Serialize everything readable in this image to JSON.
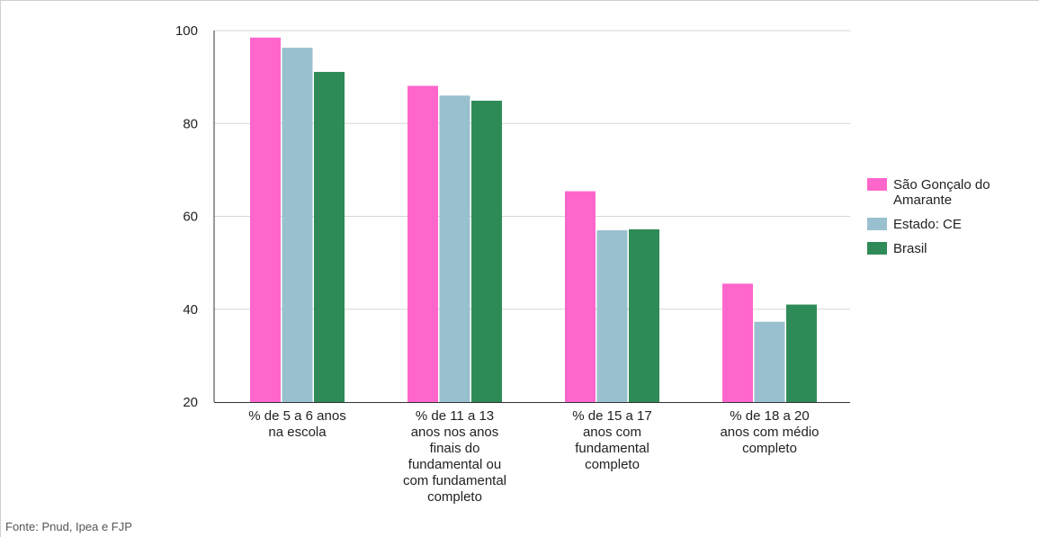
{
  "source_note": "Fonte: Pnud, Ipea e FJP",
  "chart_data": {
    "type": "bar",
    "categories": [
      [
        "% de 5 a 6 anos",
        "na escola"
      ],
      [
        "% de 11 a 13",
        "anos nos anos",
        "finais do",
        "fundamental ou",
        "com fundamental",
        "completo"
      ],
      [
        "% de 15 a 17",
        "anos com",
        "fundamental",
        "completo"
      ],
      [
        "% de 18 a 20",
        "anos com médio",
        "completo"
      ]
    ],
    "series": [
      {
        "name": [
          "São Gonçalo do",
          "Amarante"
        ],
        "color": "#ff66cc",
        "values": [
          98.5,
          88.1,
          65.4,
          45.5
        ]
      },
      {
        "name": [
          "Estado: CE"
        ],
        "color": "#99c0cf",
        "values": [
          96.3,
          86.0,
          57.0,
          37.3
        ]
      },
      {
        "name": [
          "Brasil"
        ],
        "color": "#2e8b57",
        "values": [
          91.1,
          84.9,
          57.2,
          41.0
        ]
      }
    ],
    "ylim": [
      20,
      100
    ],
    "yticks": [
      20,
      40,
      60,
      80,
      100
    ],
    "grid": true,
    "legend_position": "right",
    "title": "",
    "xlabel": "",
    "ylabel": ""
  }
}
